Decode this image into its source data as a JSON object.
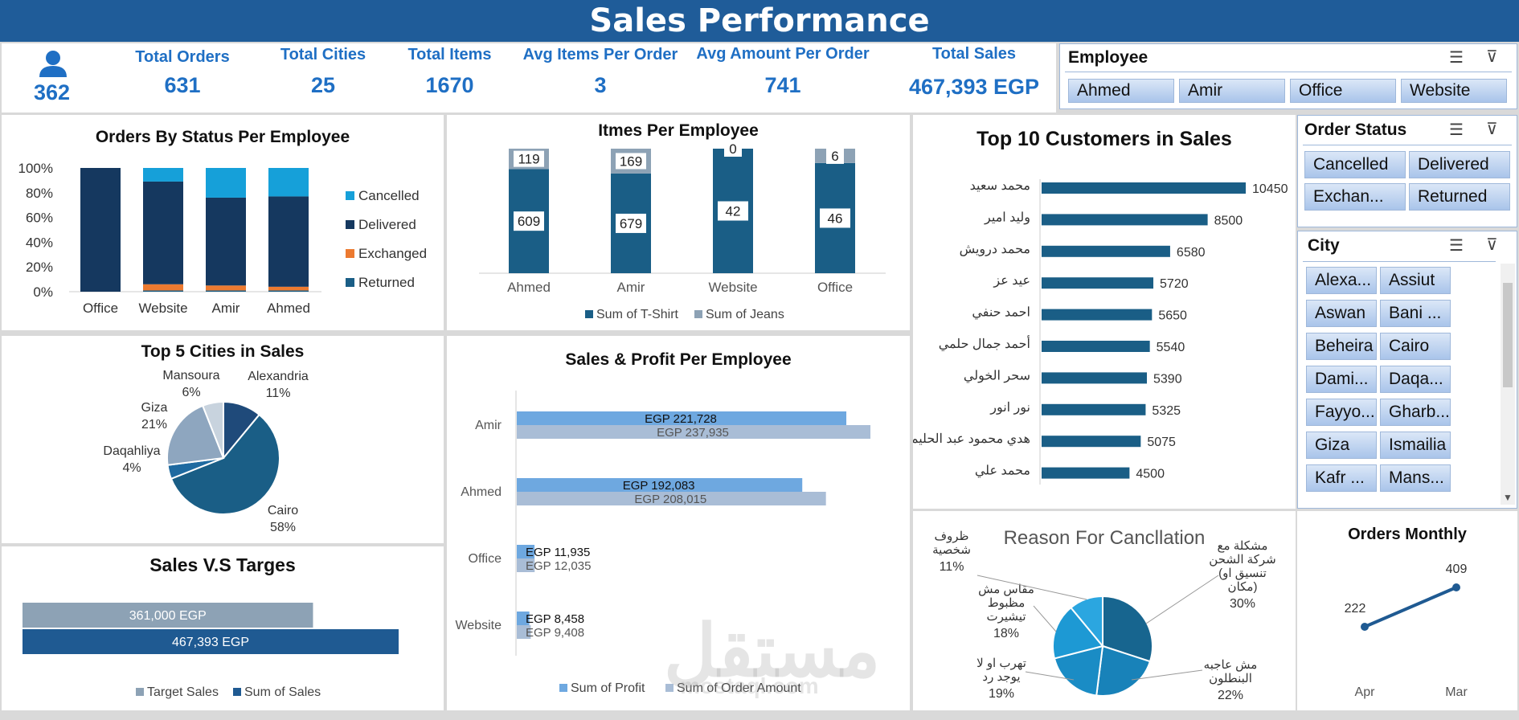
{
  "header": {
    "title": "Sales Performance"
  },
  "kpis": {
    "employees_value": "362",
    "items": [
      {
        "label": "Total Orders",
        "value": "631"
      },
      {
        "label": "Total Cities",
        "value": "25"
      },
      {
        "label": "Total Items",
        "value": "1670"
      },
      {
        "label": "Avg Items Per Order",
        "value": "3"
      },
      {
        "label": "Avg Amount  Per Order",
        "value": "741"
      },
      {
        "label": "Total Sales",
        "value": "467,393 EGP"
      }
    ]
  },
  "slicers": {
    "employee": {
      "title": "Employee",
      "items": [
        "Ahmed",
        "Amir",
        "Office",
        "Website"
      ]
    },
    "order_status": {
      "title": "Order Status",
      "items": [
        "Cancelled",
        "Delivered",
        "Exchan...",
        "Returned"
      ]
    },
    "city": {
      "title": "City",
      "items": [
        "Alexa...",
        "Assiut",
        "Aswan",
        "Bani ...",
        "Beheira",
        "Cairo",
        "Dami...",
        "Daqa...",
        "Fayyo...",
        "Gharb...",
        "Giza",
        "Ismailia",
        "Kafr ...",
        "Mans..."
      ]
    }
  },
  "colors": {
    "dark": "#15385f",
    "mid": "#1a5e86",
    "light": "#16a0d9",
    "orange": "#ec7a30",
    "grey": "#8da2b5",
    "lightblue": "#6ea8e0",
    "lightgrey": "#a9bdd6",
    "title_bar": "#1f5c99"
  },
  "watermark": "مستقل",
  "watermark_url": "mostaql.com",
  "chart_data": [
    {
      "id": "status",
      "type": "bar",
      "stacked": "100%",
      "title": "Orders By Status Per Employee",
      "categories": [
        "Office",
        "Website",
        "Amir",
        "Ahmed"
      ],
      "y_ticks": [
        "100%",
        "80%",
        "60%",
        "40%",
        "20%",
        "0%"
      ],
      "series": [
        {
          "name": "Returned",
          "values": [
            0.0,
            0.01,
            0.01,
            0.01
          ]
        },
        {
          "name": "Exchanged",
          "values": [
            0.0,
            0.05,
            0.04,
            0.03
          ]
        },
        {
          "name": "Delivered",
          "values": [
            1.0,
            0.83,
            0.71,
            0.73
          ]
        },
        {
          "name": "Cancelled",
          "values": [
            0.0,
            0.11,
            0.24,
            0.23
          ]
        }
      ],
      "legend": [
        "Cancelled",
        "Delivered",
        "Exchanged",
        "Returned"
      ],
      "legend_position": "right"
    },
    {
      "id": "items",
      "type": "bar",
      "stacked": true,
      "title": "Itmes Per Employee",
      "categories": [
        "Ahmed",
        "Amir",
        "Website",
        "Office"
      ],
      "series": [
        {
          "name": "Sum of T-Shirt",
          "values": [
            609,
            679,
            42,
            46
          ]
        },
        {
          "name": "Sum of Jeans",
          "values": [
            119,
            169,
            0,
            6
          ]
        }
      ],
      "legend_position": "bottom"
    },
    {
      "id": "customers",
      "type": "bar",
      "orientation": "horizontal",
      "title": "Top 10 Customers in Sales",
      "categories": [
        "محمد سعيد",
        "وليد امير",
        "محمد درويش",
        "عيد عز",
        "احمد حنفي",
        "أحمد جمال حلمي",
        "سحر الخولي",
        "نور انور",
        "هدي محمود عبد الحليم",
        "محمد علي"
      ],
      "values": [
        10450,
        8500,
        6580,
        5720,
        5650,
        5540,
        5390,
        5325,
        5075,
        4500
      ]
    },
    {
      "id": "cities",
      "type": "pie",
      "title": "Top 5 Cities in Sales",
      "labels": [
        "Alexandria",
        "Cairo",
        "Daqahliya",
        "Giza",
        "Mansoura"
      ],
      "values": [
        11,
        58,
        4,
        21,
        6
      ],
      "value_labels": [
        "11%",
        "58%",
        "4%",
        "21%",
        "6%"
      ]
    },
    {
      "id": "salesprofit",
      "type": "bar",
      "orientation": "horizontal",
      "title": "Sales & Profit Per Employee",
      "categories": [
        "Amir",
        "Ahmed",
        "Office",
        "Website"
      ],
      "series": [
        {
          "name": "Sum of Profit",
          "values": [
            221728,
            192083,
            11935,
            8458
          ],
          "labels": [
            "EGP 221,728",
            "EGP 192,083",
            "EGP 11,935",
            "EGP 8,458"
          ]
        },
        {
          "name": "Sum of Order Amount",
          "values": [
            237935,
            208015,
            12035,
            9408
          ],
          "labels": [
            "EGP 237,935",
            "EGP 208,015",
            "EGP 12,035",
            "EGP 9,408"
          ]
        }
      ],
      "legend_position": "bottom"
    },
    {
      "id": "targets",
      "type": "bar",
      "orientation": "horizontal",
      "title": "Sales V.S Targes",
      "series": [
        {
          "name": "Target Sales",
          "values": [
            361000
          ],
          "labels": [
            "361,000 EGP"
          ]
        },
        {
          "name": "Sum of Sales",
          "values": [
            467393
          ],
          "labels": [
            "467,393 EGP"
          ]
        }
      ],
      "legend_position": "bottom"
    },
    {
      "id": "reasons",
      "type": "pie",
      "title": "Reason For Cancllation",
      "labels": [
        "مشكلة مع شركة الشحن (تنسيق او مكان)",
        "مش عاجبه البنطلون",
        "تهرب او لا يوجد رد",
        "مقاس مش مظبوط تيشيرت",
        "ظروف شخصية"
      ],
      "values": [
        30,
        22,
        19,
        18,
        11
      ],
      "value_labels": [
        "30%",
        "22%",
        "19%",
        "18%",
        "11%"
      ]
    },
    {
      "id": "monthly",
      "type": "line",
      "title": "Orders Monthly",
      "categories": [
        "Apr",
        "Mar"
      ],
      "values": [
        222,
        409
      ]
    }
  ]
}
